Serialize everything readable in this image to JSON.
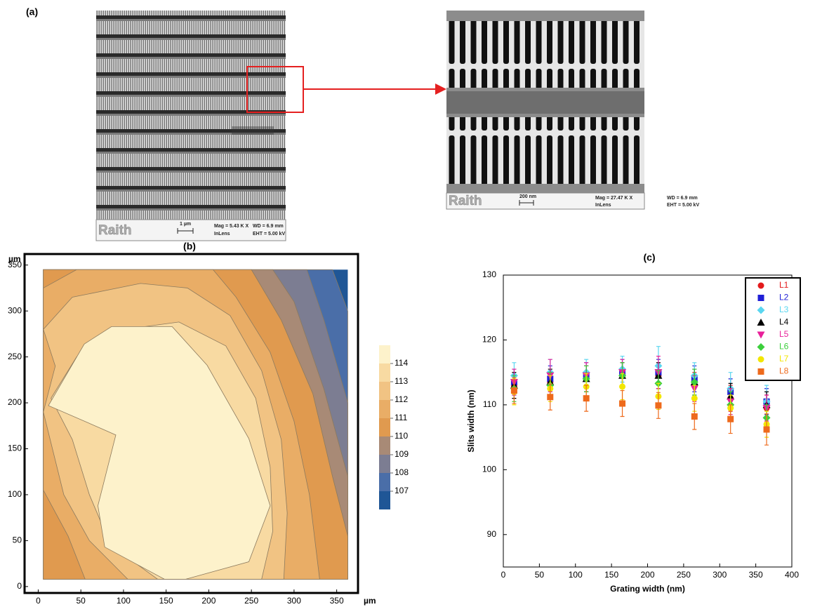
{
  "panel_a": {
    "label": "(a)",
    "overview": {
      "logo": "Raith",
      "scale": "1 µm",
      "mag": "Mag =  5.43 K X",
      "detector": "InLens",
      "wd": "WD =  6.9 mm",
      "eht": "EHT =  5.00 kV"
    },
    "zoom": {
      "logo": "Raith",
      "scale": "200 nm",
      "mag": "Mag =  27.47 K X",
      "detector": "InLens",
      "wd": "WD =  6.9 mm",
      "eht": "EHT =  5.00 kV"
    }
  },
  "chart_data": [
    {
      "type": "contour",
      "title": "(b)",
      "x_unit": "µm",
      "y_unit": "µm",
      "xlim": [
        -16,
        375
      ],
      "ylim": [
        -7,
        362
      ],
      "xticks": [
        0,
        50,
        100,
        150,
        200,
        250,
        300,
        350
      ],
      "yticks": [
        0,
        50,
        100,
        150,
        200,
        250,
        300,
        350
      ],
      "colorbar_ticks": [
        114,
        113,
        112,
        111,
        110,
        109,
        108,
        107
      ],
      "colors": [
        "#fdf2cb",
        "#f8daa2",
        "#f1c383",
        "#e9ad66",
        "#e09a4f",
        "#a88a76",
        "#7c7d92",
        "#4a6ea8",
        "#1f5696"
      ]
    },
    {
      "type": "scatter",
      "title": "(c)",
      "x_label": "Grating width (nm)",
      "y_label": "Slits width (nm)",
      "xlim": [
        0,
        400
      ],
      "ylim": [
        85,
        130
      ],
      "xticks": [
        0,
        50,
        100,
        150,
        200,
        250,
        300,
        350,
        400
      ],
      "yticks": [
        90,
        100,
        110,
        120,
        130
      ],
      "x": [
        15,
        65,
        115,
        165,
        215,
        265,
        315,
        365
      ],
      "series": [
        {
          "name": "L1",
          "color": "#e31a1c",
          "marker": "circle",
          "values": [
            113,
            113.5,
            114,
            114.5,
            114.5,
            113,
            111,
            109.5
          ],
          "errors": [
            2,
            2,
            2,
            2,
            2,
            2,
            2,
            2
          ]
        },
        {
          "name": "L2",
          "color": "#1f1fd6",
          "marker": "square",
          "values": [
            113.5,
            114,
            114.5,
            115,
            115,
            114,
            112,
            110.5
          ],
          "errors": [
            2,
            2,
            2,
            2,
            2,
            2,
            2,
            2
          ]
        },
        {
          "name": "L3",
          "color": "#5ad6f0",
          "marker": "diamond",
          "values": [
            114.5,
            115,
            115,
            115.5,
            116,
            114.5,
            112.5,
            110.5
          ],
          "errors": [
            2,
            2,
            2,
            2,
            3,
            2,
            2.5,
            2.5
          ]
        },
        {
          "name": "L4",
          "color": "#000000",
          "marker": "triangle",
          "values": [
            113,
            113.5,
            114,
            114.5,
            114.5,
            113.5,
            111.3,
            110
          ],
          "errors": [
            2,
            2,
            2,
            2,
            2,
            2,
            2,
            2
          ]
        },
        {
          "name": "L5",
          "color": "#e8209a",
          "marker": "triangle-down",
          "values": [
            113.5,
            114.5,
            114.5,
            115,
            115,
            112.5,
            110.5,
            109.5
          ],
          "errors": [
            2,
            2.5,
            2,
            2,
            2.5,
            2,
            2,
            2
          ]
        },
        {
          "name": "L6",
          "color": "#3ccf3c",
          "marker": "diamond",
          "values": [
            112.5,
            113,
            114,
            114.5,
            113.3,
            113.5,
            110,
            108
          ],
          "errors": [
            2,
            2,
            2,
            2,
            2,
            2,
            2,
            2
          ]
        },
        {
          "name": "L7",
          "color": "#f2e600",
          "marker": "circle",
          "values": [
            112,
            112.5,
            112.8,
            112.8,
            111.3,
            111,
            109.5,
            107
          ],
          "errors": [
            2,
            2,
            2,
            2,
            2,
            2,
            2,
            2
          ]
        },
        {
          "name": "L8",
          "color": "#ee6a1c",
          "marker": "square",
          "values": [
            112.2,
            111.2,
            111,
            110.2,
            109.9,
            108.2,
            107.8,
            106.2
          ],
          "errors": [
            2,
            2,
            2,
            2,
            2,
            2,
            2.2,
            2.4
          ]
        }
      ]
    }
  ]
}
